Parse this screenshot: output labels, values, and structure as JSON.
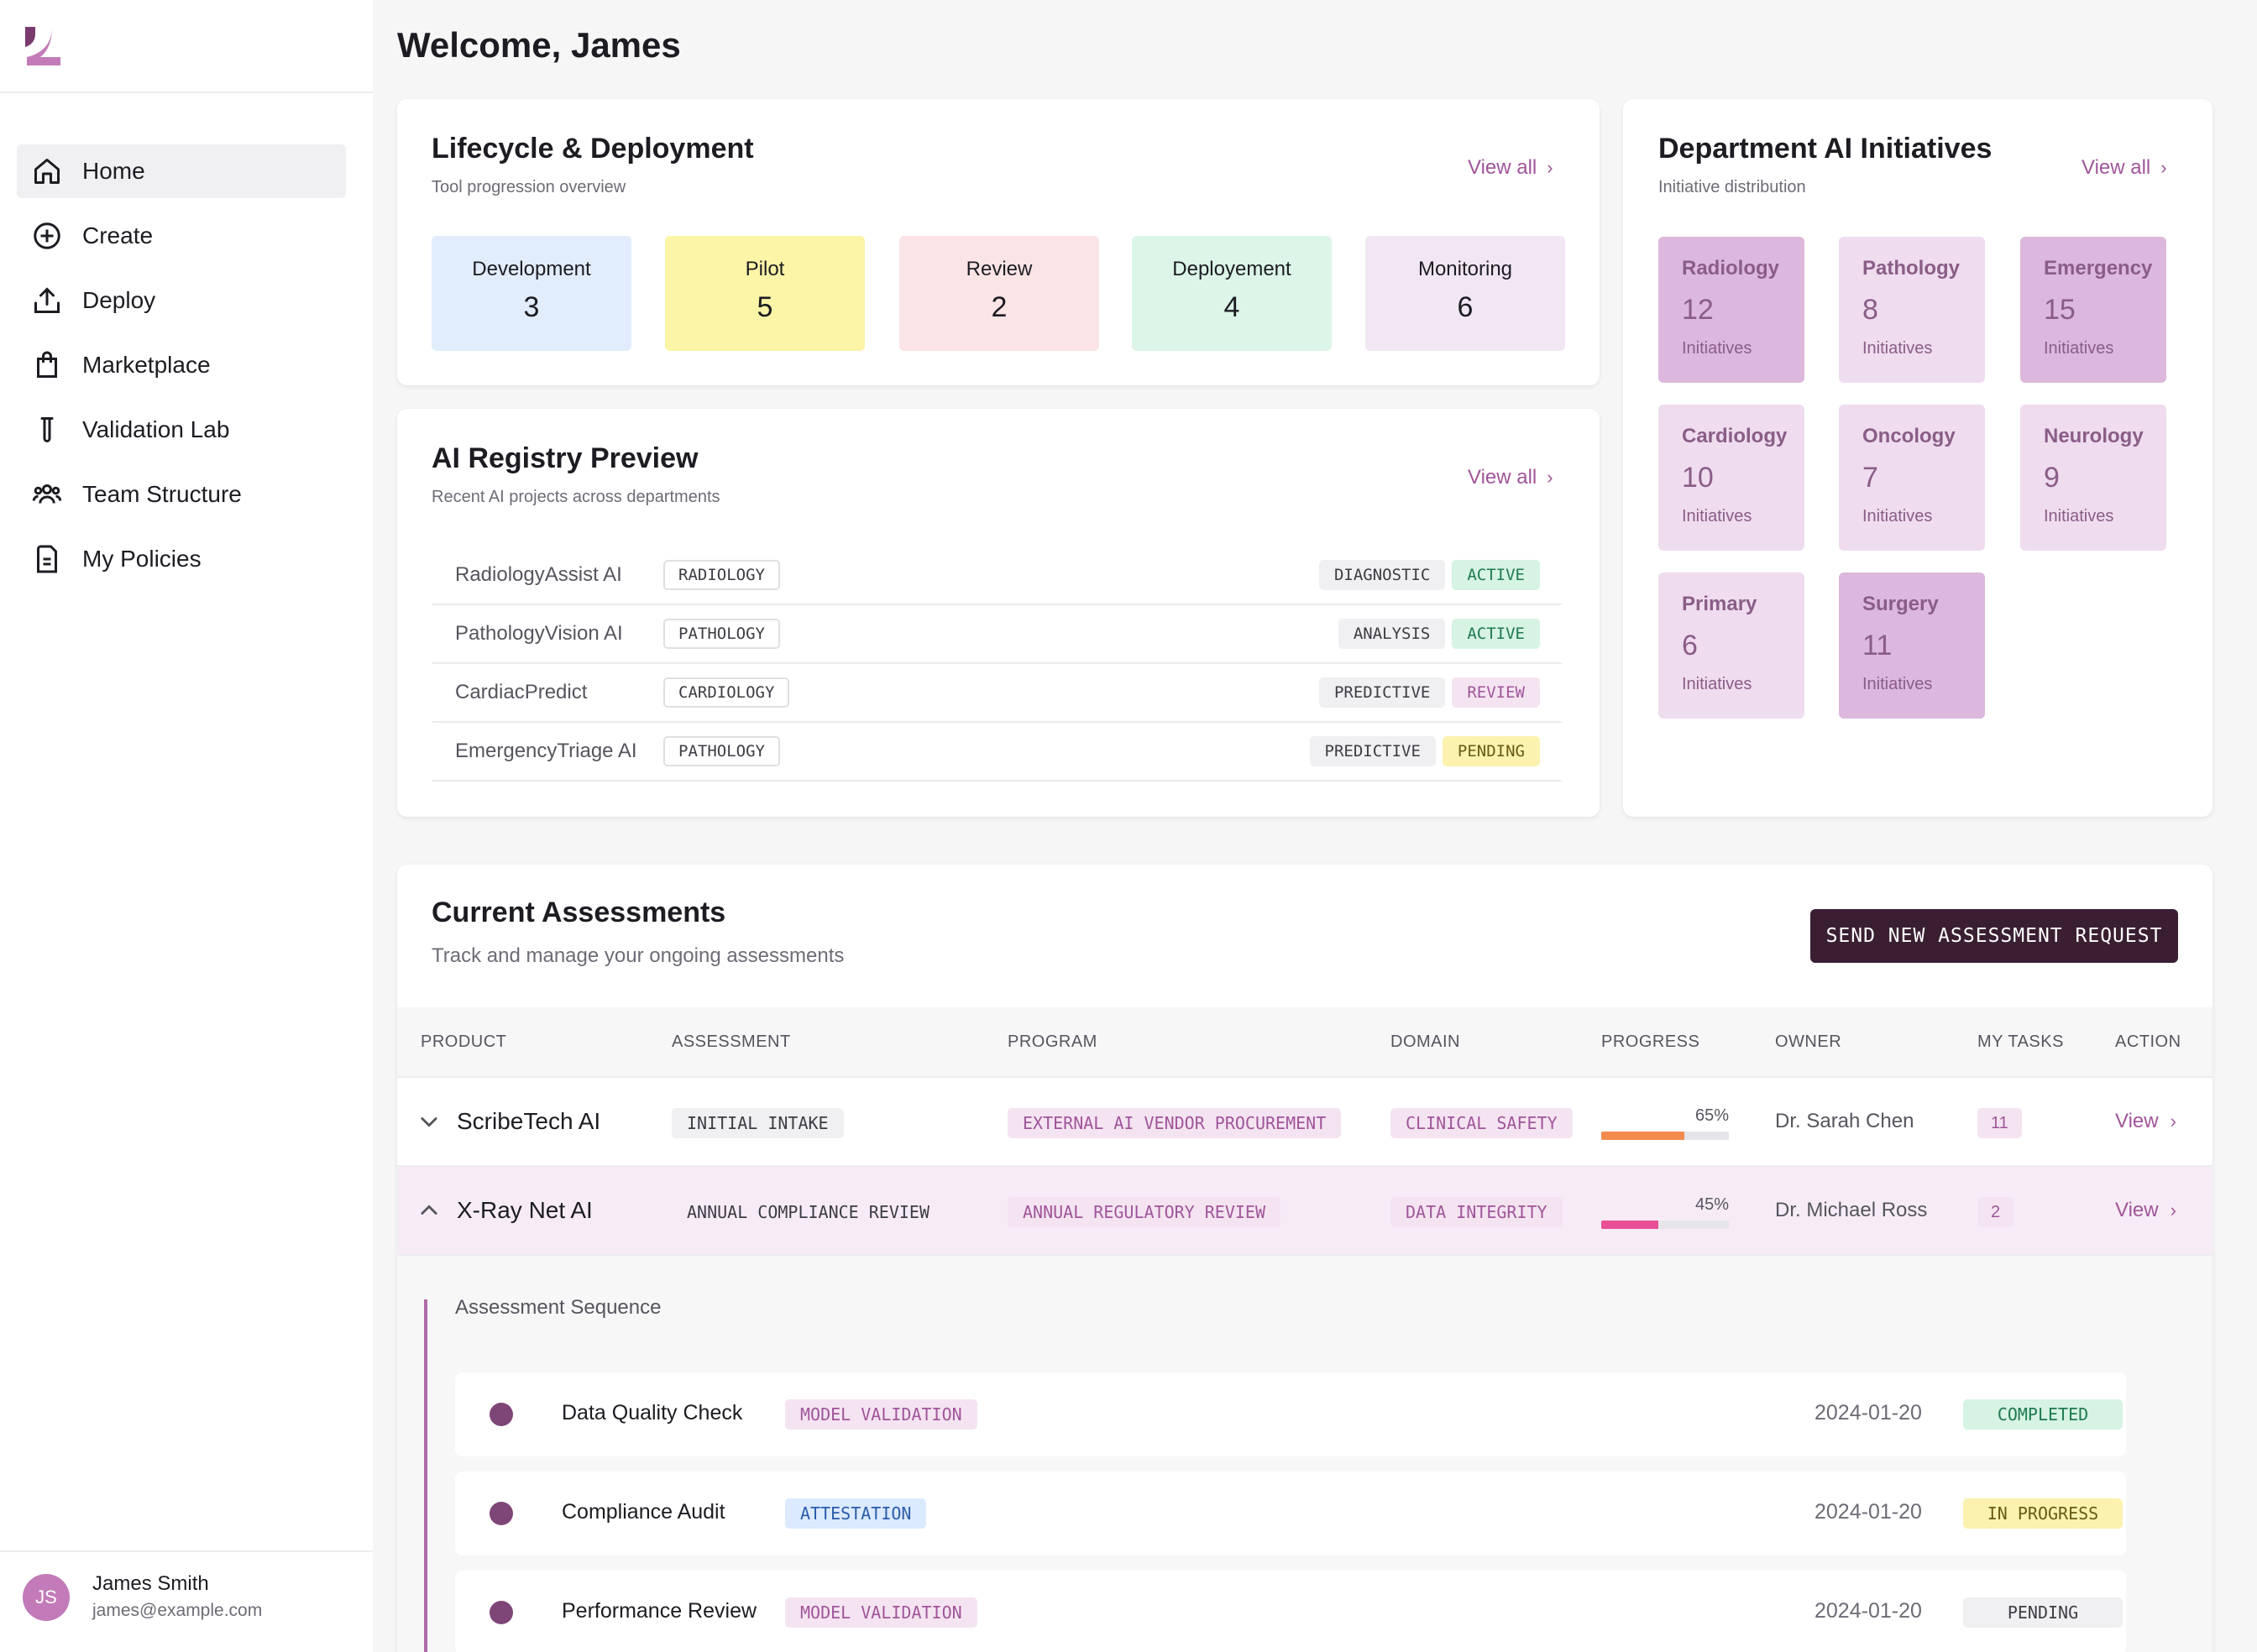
{
  "sidebar": {
    "items": [
      {
        "label": "Home",
        "icon": "home-icon",
        "active": true
      },
      {
        "label": "Create",
        "icon": "plus-circle-icon"
      },
      {
        "label": "Deploy",
        "icon": "upload-icon"
      },
      {
        "label": "Marketplace",
        "icon": "shopping-bag-icon"
      },
      {
        "label": "Validation Lab",
        "icon": "test-tube-icon"
      },
      {
        "label": "Team Structure",
        "icon": "team-icon"
      },
      {
        "label": "My Policies",
        "icon": "document-icon"
      }
    ],
    "user": {
      "initials": "JS",
      "name": "James Smith",
      "email": "james@example.com"
    }
  },
  "welcome": "Welcome, James",
  "lifecycle": {
    "title": "Lifecycle & Deployment",
    "subtitle": "Tool progression overview",
    "view_all": "View all",
    "stages": [
      {
        "label": "Development",
        "count": "3",
        "color": "#e1edfd"
      },
      {
        "label": "Pilot",
        "count": "5",
        "color": "#fcf4a6"
      },
      {
        "label": "Review",
        "count": "2",
        "color": "#fbe4e6"
      },
      {
        "label": "Deployement",
        "count": "4",
        "color": "#dcf5e8"
      },
      {
        "label": "Monitoring",
        "count": "6",
        "color": "#f2e6f4"
      }
    ]
  },
  "registry": {
    "title": "AI Registry Preview",
    "subtitle": "Recent AI projects across departments",
    "view_all": "View all",
    "rows": [
      {
        "name": "RadiologyAssist AI",
        "dept": "RADIOLOGY",
        "type": "DIAGNOSTIC",
        "status": "ACTIVE"
      },
      {
        "name": "PathologyVision AI",
        "dept": "PATHOLOGY",
        "type": "ANALYSIS",
        "status": "ACTIVE"
      },
      {
        "name": "CardiacPredict",
        "dept": "CARDIOLOGY",
        "type": "PREDICTIVE",
        "status": "REVIEW"
      },
      {
        "name": "EmergencyTriage AI",
        "dept": "PATHOLOGY",
        "type": "PREDICTIVE",
        "status": "PENDING"
      }
    ]
  },
  "departments": {
    "title": "Department AI Initiatives",
    "subtitle": "Initiative distribution",
    "view_all": "View all",
    "unit": "Initiatives",
    "items": [
      {
        "name": "Radiology",
        "count": "12"
      },
      {
        "name": "Pathology",
        "count": "8"
      },
      {
        "name": "Emergency",
        "count": "15"
      },
      {
        "name": "Cardiology",
        "count": "10"
      },
      {
        "name": "Oncology",
        "count": "7"
      },
      {
        "name": "Neurology",
        "count": "9"
      },
      {
        "name": "Primary",
        "count": "6"
      },
      {
        "name": "Surgery",
        "count": "11"
      }
    ]
  },
  "assessments": {
    "title": "Current Assessments",
    "subtitle": "Track and manage your ongoing assessments",
    "send_button": "SEND NEW ASSESSMENT REQUEST",
    "columns": [
      "PRODUCT",
      "ASSESSMENT",
      "PROGRAM",
      "DOMAIN",
      "PROGRESS",
      "OWNER",
      "MY TASKS",
      "ACTION"
    ],
    "rows": [
      {
        "product": "ScribeTech AI",
        "assessment": "INITIAL INTAKE",
        "program": "EXTERNAL AI VENDOR PROCUREMENT",
        "domain": "CLINICAL SAFETY",
        "progress": 65,
        "progress_label": "65%",
        "progress_color": "#f58a4f",
        "owner": "Dr. Sarah Chen",
        "tasks": "11",
        "action": "View",
        "expanded": false
      },
      {
        "product": "X-Ray Net AI",
        "assessment": "ANNUAL COMPLIANCE REVIEW",
        "program": "ANNUAL REGULATORY REVIEW",
        "domain": "DATA INTEGRITY",
        "progress": 45,
        "progress_label": "45%",
        "progress_color": "#e84f96",
        "owner": "Dr. Michael Ross",
        "tasks": "2",
        "action": "View",
        "expanded": true
      }
    ],
    "sequence": {
      "title": "Assessment Sequence",
      "steps": [
        {
          "name": "Data Quality Check",
          "tag": "MODEL VALIDATION",
          "date": "2024-01-20",
          "status": "COMPLETED"
        },
        {
          "name": "Compliance Audit",
          "tag": "ATTESTATION",
          "date": "2024-01-20",
          "status": "IN PROGRESS"
        },
        {
          "name": "Performance Review",
          "tag": "MODEL VALIDATION",
          "date": "2024-01-20",
          "status": "PENDING"
        }
      ]
    }
  }
}
